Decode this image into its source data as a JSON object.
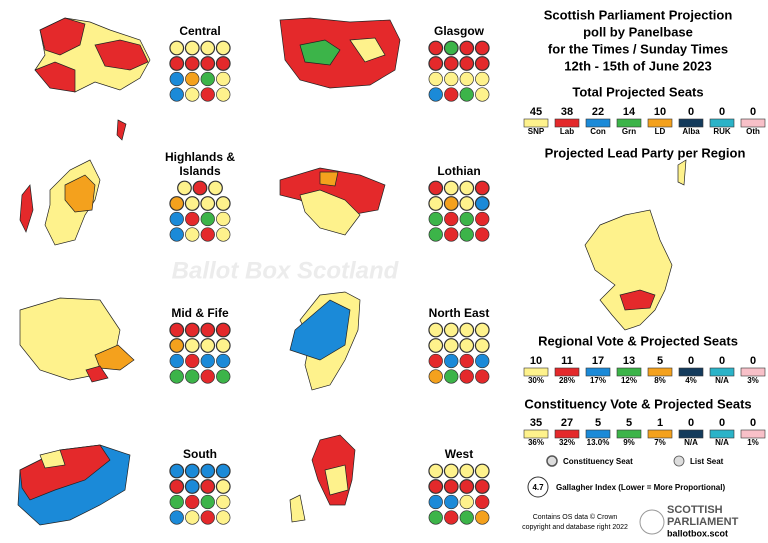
{
  "header": {
    "title_lines": [
      "Scottish Parliament Projection",
      "poll by Panelbase",
      "for the Times / Sunday Times",
      "12th - 15th of June 2023"
    ]
  },
  "parties": [
    {
      "name": "SNP",
      "color": "#fef28c"
    },
    {
      "name": "Lab",
      "color": "#e4292b"
    },
    {
      "name": "Con",
      "color": "#1b8ad8"
    },
    {
      "name": "Grn",
      "color": "#3cb449"
    },
    {
      "name": "LD",
      "color": "#f4a11d"
    },
    {
      "name": "Alba",
      "color": "#143b5c"
    },
    {
      "name": "RUK",
      "color": "#2bb3c8"
    },
    {
      "name": "Oth",
      "color": "#f8c0c8"
    }
  ],
  "total_seats": {
    "title": "Total Projected Seats",
    "values": [
      45,
      38,
      22,
      14,
      10,
      0,
      0,
      0
    ]
  },
  "lead_map": {
    "title": "Projected Lead Party per Region"
  },
  "regional": {
    "title": "Regional Vote & Projected Seats",
    "seats": [
      10,
      11,
      17,
      13,
      5,
      0,
      0,
      0
    ],
    "votes": [
      "30%",
      "28%",
      "17%",
      "12%",
      "8%",
      "4%",
      "N/A",
      "3%"
    ]
  },
  "constituency": {
    "title": "Constituency Vote & Projected Seats",
    "seats": [
      35,
      27,
      5,
      5,
      1,
      0,
      0,
      0
    ],
    "votes": [
      "36%",
      "32%",
      "13.0%",
      "9%",
      "7%",
      "N/A",
      "N/A",
      "1%"
    ]
  },
  "regions": [
    {
      "name_lines": [
        "Central"
      ],
      "seats": [
        [
          "SNP",
          "SNP",
          "SNP",
          "SNP"
        ],
        [
          "Lab",
          "Lab",
          "Lab",
          "Lab"
        ],
        [
          "Con",
          "LD",
          "Grn",
          "SNP"
        ],
        [
          "Con",
          "SNP",
          "Lab",
          "SNP"
        ]
      ]
    },
    {
      "name_lines": [
        "Glasgow"
      ],
      "seats": [
        [
          "Lab",
          "Grn",
          "Lab",
          "Lab"
        ],
        [
          "Lab",
          "Lab",
          "Lab",
          "Lab"
        ],
        [
          "SNP",
          "SNP",
          "SNP",
          "SNP"
        ],
        [
          "Con",
          "Lab",
          "Grn",
          "SNP"
        ]
      ]
    },
    {
      "name_lines": [
        "Highlands &",
        "Islands"
      ],
      "seats": [
        [
          "SNP",
          "Lab",
          "SNP"
        ],
        [
          "LD",
          "SNP",
          "SNP",
          "SNP"
        ],
        [
          "Con",
          "Lab",
          "Grn",
          "SNP"
        ],
        [
          "Con",
          "SNP",
          "Lab",
          "SNP"
        ]
      ]
    },
    {
      "name_lines": [
        "Lothian"
      ],
      "seats": [
        [
          "Lab",
          "SNP",
          "SNP",
          "Lab"
        ],
        [
          "SNP",
          "LD",
          "SNP",
          "Con"
        ],
        [
          "Grn",
          "Lab",
          "Grn",
          "Lab"
        ],
        [
          "Grn",
          "Lab",
          "Grn",
          "Lab"
        ]
      ]
    },
    {
      "name_lines": [
        "Mid & Fife"
      ],
      "seats": [
        [
          "Lab",
          "Lab",
          "Lab",
          "Lab"
        ],
        [
          "LD",
          "SNP",
          "SNP",
          "SNP"
        ],
        [
          "Con",
          "Lab",
          "Con",
          "Con"
        ],
        [
          "Grn",
          "Grn",
          "Lab",
          "Grn"
        ]
      ]
    },
    {
      "name_lines": [
        "North East"
      ],
      "seats": [
        [
          "SNP",
          "SNP",
          "SNP",
          "SNP"
        ],
        [
          "SNP",
          "SNP",
          "SNP",
          "SNP"
        ],
        [
          "Lab",
          "Con",
          "Lab",
          "Con"
        ],
        [
          "LD",
          "Grn",
          "Lab",
          "Lab"
        ]
      ]
    },
    {
      "name_lines": [
        "South"
      ],
      "seats": [
        [
          "Con",
          "Con",
          "Con",
          "Con"
        ],
        [
          "Lab",
          "Con",
          "Lab",
          "SNP"
        ],
        [
          "Grn",
          "Lab",
          "Grn",
          "SNP"
        ],
        [
          "Con",
          "SNP",
          "Lab",
          "SNP"
        ]
      ]
    },
    {
      "name_lines": [
        "West"
      ],
      "seats": [
        [
          "SNP",
          "SNP",
          "SNP",
          "SNP"
        ],
        [
          "Lab",
          "Lab",
          "Lab",
          "Lab"
        ],
        [
          "Con",
          "Con",
          "SNP",
          "Lab"
        ],
        [
          "Grn",
          "Lab",
          "Grn",
          "LD"
        ]
      ]
    }
  ],
  "legend": {
    "constituency": "Constituency Seat",
    "list": "List Seat"
  },
  "gallagher": {
    "value": "4.7",
    "label": "Gallagher Index (Lower = More Proportional)"
  },
  "credit": [
    "Contains OS data © Crown",
    "copyright and database right 2022"
  ],
  "logo": {
    "line1": "SCOTTISH",
    "line2": "PARLIAMENT",
    "url": "ballotbox.scot"
  },
  "watermark": "Ballot Box Scotland"
}
